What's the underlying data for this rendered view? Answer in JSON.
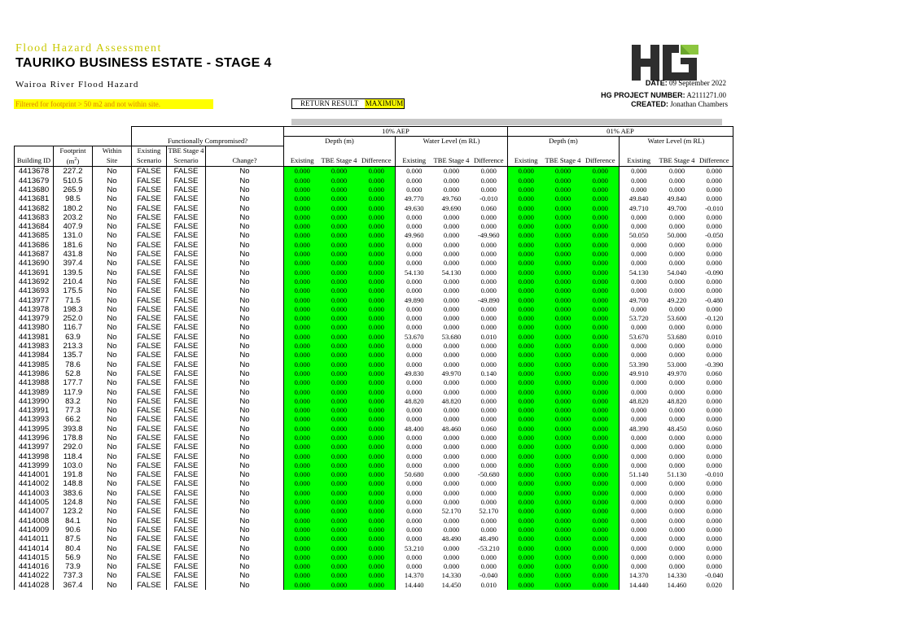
{
  "header": {
    "label": "Flood Hazard Assessment",
    "title": "TAURIKO BUSINESS ESTATE - STAGE 4",
    "subtitle": "Wairoa River Flood Hazard",
    "filter_note": "Filtered for footprint > 50 m2 and not within site.",
    "return_result_label": "RETURN RESULT",
    "return_result_value": "MAXIMUM",
    "logo_text": "HG",
    "date_label": "DATE:",
    "date_value": "09 September 2022",
    "project_label": "HG PROJECT NUMBER:",
    "project_value": "A2111271.00",
    "created_label": "CREATED:",
    "created_value": "Jonathan Chambers"
  },
  "colors": {
    "accent_yellow": "#c8c800",
    "highlight": "#ffff00",
    "depth_cell": "#00ff00",
    "logo_dark": "#2e2e2e",
    "logo_green": "#8cc63f"
  },
  "table": {
    "group_headers": {
      "func": "Functionally Compromised?",
      "aep10": "10% AEP",
      "aep01": "01% AEP"
    },
    "sub_headers": {
      "depth": "Depth (m)",
      "wl": "Water Level (m RL)"
    },
    "col_top": {
      "footprint": "Footprint",
      "within": "Within",
      "existing": "Existing",
      "tbe": "TBE Stage 4"
    },
    "col_bottom": {
      "building": "Building ID",
      "area": "(m",
      "area_sup": "2",
      "area_end": ")",
      "site": "Site",
      "existing": "Scenario",
      "tbe": "Scenario",
      "change": "Change?",
      "d_existing": "Existing",
      "d_tbe": "TBE Stage 4",
      "d_diff": "Difference",
      "w_existing": "Existing",
      "w_tbe": "TBE Stage 4",
      "w_diff": "Difference"
    },
    "rows": [
      [
        "4413678",
        "227.2",
        "No",
        "FALSE",
        "FALSE",
        "No",
        "0.000",
        "0.000",
        "0.000",
        "0.000",
        "0.000",
        "0.000",
        "0.000",
        "0.000",
        "0.000",
        "0.000",
        "0.000",
        "0.000"
      ],
      [
        "4413679",
        "510.5",
        "No",
        "FALSE",
        "FALSE",
        "No",
        "0.000",
        "0.000",
        "0.000",
        "0.000",
        "0.000",
        "0.000",
        "0.000",
        "0.000",
        "0.000",
        "0.000",
        "0.000",
        "0.000"
      ],
      [
        "4413680",
        "265.9",
        "No",
        "FALSE",
        "FALSE",
        "No",
        "0.000",
        "0.000",
        "0.000",
        "0.000",
        "0.000",
        "0.000",
        "0.000",
        "0.000",
        "0.000",
        "0.000",
        "0.000",
        "0.000"
      ],
      [
        "4413681",
        "98.5",
        "No",
        "FALSE",
        "FALSE",
        "No",
        "0.000",
        "0.000",
        "0.000",
        "49.770",
        "49.760",
        "-0.010",
        "0.000",
        "0.000",
        "0.000",
        "49.840",
        "49.840",
        "0.000"
      ],
      [
        "4413682",
        "180.2",
        "No",
        "FALSE",
        "FALSE",
        "No",
        "0.000",
        "0.000",
        "0.000",
        "49.630",
        "49.690",
        "0.060",
        "0.000",
        "0.000",
        "0.000",
        "49.710",
        "49.700",
        "-0.010"
      ],
      [
        "4413683",
        "203.2",
        "No",
        "FALSE",
        "FALSE",
        "No",
        "0.000",
        "0.000",
        "0.000",
        "0.000",
        "0.000",
        "0.000",
        "0.000",
        "0.000",
        "0.000",
        "0.000",
        "0.000",
        "0.000"
      ],
      [
        "4413684",
        "407.9",
        "No",
        "FALSE",
        "FALSE",
        "No",
        "0.000",
        "0.000",
        "0.000",
        "0.000",
        "0.000",
        "0.000",
        "0.000",
        "0.000",
        "0.000",
        "0.000",
        "0.000",
        "0.000"
      ],
      [
        "4413685",
        "131.0",
        "No",
        "FALSE",
        "FALSE",
        "No",
        "0.000",
        "0.000",
        "0.000",
        "49.960",
        "0.000",
        "-49.960",
        "0.000",
        "0.000",
        "0.000",
        "50.050",
        "50.000",
        "-0.050"
      ],
      [
        "4413686",
        "181.6",
        "No",
        "FALSE",
        "FALSE",
        "No",
        "0.000",
        "0.000",
        "0.000",
        "0.000",
        "0.000",
        "0.000",
        "0.000",
        "0.000",
        "0.000",
        "0.000",
        "0.000",
        "0.000"
      ],
      [
        "4413687",
        "431.8",
        "No",
        "FALSE",
        "FALSE",
        "No",
        "0.000",
        "0.000",
        "0.000",
        "0.000",
        "0.000",
        "0.000",
        "0.000",
        "0.000",
        "0.000",
        "0.000",
        "0.000",
        "0.000"
      ],
      [
        "4413690",
        "397.4",
        "No",
        "FALSE",
        "FALSE",
        "No",
        "0.000",
        "0.000",
        "0.000",
        "0.000",
        "0.000",
        "0.000",
        "0.000",
        "0.000",
        "0.000",
        "0.000",
        "0.000",
        "0.000"
      ],
      [
        "4413691",
        "139.5",
        "No",
        "FALSE",
        "FALSE",
        "No",
        "0.000",
        "0.000",
        "0.000",
        "54.130",
        "54.130",
        "0.000",
        "0.000",
        "0.000",
        "0.000",
        "54.130",
        "54.040",
        "-0.090"
      ],
      [
        "4413692",
        "210.4",
        "No",
        "FALSE",
        "FALSE",
        "No",
        "0.000",
        "0.000",
        "0.000",
        "0.000",
        "0.000",
        "0.000",
        "0.000",
        "0.000",
        "0.000",
        "0.000",
        "0.000",
        "0.000"
      ],
      [
        "4413693",
        "175.5",
        "No",
        "FALSE",
        "FALSE",
        "No",
        "0.000",
        "0.000",
        "0.000",
        "0.000",
        "0.000",
        "0.000",
        "0.000",
        "0.000",
        "0.000",
        "0.000",
        "0.000",
        "0.000"
      ],
      [
        "4413977",
        "71.5",
        "No",
        "FALSE",
        "FALSE",
        "No",
        "0.000",
        "0.000",
        "0.000",
        "49.890",
        "0.000",
        "-49.890",
        "0.000",
        "0.000",
        "0.000",
        "49.700",
        "49.220",
        "-0.480"
      ],
      [
        "4413978",
        "198.3",
        "No",
        "FALSE",
        "FALSE",
        "No",
        "0.000",
        "0.000",
        "0.000",
        "0.000",
        "0.000",
        "0.000",
        "0.000",
        "0.000",
        "0.000",
        "0.000",
        "0.000",
        "0.000"
      ],
      [
        "4413979",
        "252.0",
        "No",
        "FALSE",
        "FALSE",
        "No",
        "0.000",
        "0.000",
        "0.000",
        "0.000",
        "0.000",
        "0.000",
        "0.000",
        "0.000",
        "0.000",
        "53.720",
        "53.600",
        "-0.120"
      ],
      [
        "4413980",
        "116.7",
        "No",
        "FALSE",
        "FALSE",
        "No",
        "0.000",
        "0.000",
        "0.000",
        "0.000",
        "0.000",
        "0.000",
        "0.000",
        "0.000",
        "0.000",
        "0.000",
        "0.000",
        "0.000"
      ],
      [
        "4413981",
        "63.9",
        "No",
        "FALSE",
        "FALSE",
        "No",
        "0.000",
        "0.000",
        "0.000",
        "53.670",
        "53.680",
        "0.010",
        "0.000",
        "0.000",
        "0.000",
        "53.670",
        "53.680",
        "0.010"
      ],
      [
        "4413983",
        "213.3",
        "No",
        "FALSE",
        "FALSE",
        "No",
        "0.000",
        "0.000",
        "0.000",
        "0.000",
        "0.000",
        "0.000",
        "0.000",
        "0.000",
        "0.000",
        "0.000",
        "0.000",
        "0.000"
      ],
      [
        "4413984",
        "135.7",
        "No",
        "FALSE",
        "FALSE",
        "No",
        "0.000",
        "0.000",
        "0.000",
        "0.000",
        "0.000",
        "0.000",
        "0.000",
        "0.000",
        "0.000",
        "0.000",
        "0.000",
        "0.000"
      ],
      [
        "4413985",
        "78.6",
        "No",
        "FALSE",
        "FALSE",
        "No",
        "0.000",
        "0.000",
        "0.000",
        "0.000",
        "0.000",
        "0.000",
        "0.000",
        "0.000",
        "0.000",
        "53.390",
        "53.000",
        "-0.390"
      ],
      [
        "4413986",
        "52.8",
        "No",
        "FALSE",
        "FALSE",
        "No",
        "0.000",
        "0.000",
        "0.000",
        "49.830",
        "49.970",
        "0.140",
        "0.000",
        "0.000",
        "0.000",
        "49.910",
        "49.970",
        "0.060"
      ],
      [
        "4413988",
        "177.7",
        "No",
        "FALSE",
        "FALSE",
        "No",
        "0.000",
        "0.000",
        "0.000",
        "0.000",
        "0.000",
        "0.000",
        "0.000",
        "0.000",
        "0.000",
        "0.000",
        "0.000",
        "0.000"
      ],
      [
        "4413989",
        "117.9",
        "No",
        "FALSE",
        "FALSE",
        "No",
        "0.000",
        "0.000",
        "0.000",
        "0.000",
        "0.000",
        "0.000",
        "0.000",
        "0.000",
        "0.000",
        "0.000",
        "0.000",
        "0.000"
      ],
      [
        "4413990",
        "83.2",
        "No",
        "FALSE",
        "FALSE",
        "No",
        "0.000",
        "0.000",
        "0.000",
        "48.820",
        "48.820",
        "0.000",
        "0.000",
        "0.000",
        "0.000",
        "48.820",
        "48.820",
        "0.000"
      ],
      [
        "4413991",
        "77.3",
        "No",
        "FALSE",
        "FALSE",
        "No",
        "0.000",
        "0.000",
        "0.000",
        "0.000",
        "0.000",
        "0.000",
        "0.000",
        "0.000",
        "0.000",
        "0.000",
        "0.000",
        "0.000"
      ],
      [
        "4413993",
        "66.2",
        "No",
        "FALSE",
        "FALSE",
        "No",
        "0.000",
        "0.000",
        "0.000",
        "0.000",
        "0.000",
        "0.000",
        "0.000",
        "0.000",
        "0.000",
        "0.000",
        "0.000",
        "0.000"
      ],
      [
        "4413995",
        "393.8",
        "No",
        "FALSE",
        "FALSE",
        "No",
        "0.000",
        "0.000",
        "0.000",
        "48.400",
        "48.460",
        "0.060",
        "0.000",
        "0.000",
        "0.000",
        "48.390",
        "48.450",
        "0.060"
      ],
      [
        "4413996",
        "178.8",
        "No",
        "FALSE",
        "FALSE",
        "No",
        "0.000",
        "0.000",
        "0.000",
        "0.000",
        "0.000",
        "0.000",
        "0.000",
        "0.000",
        "0.000",
        "0.000",
        "0.000",
        "0.000"
      ],
      [
        "4413997",
        "292.0",
        "No",
        "FALSE",
        "FALSE",
        "No",
        "0.000",
        "0.000",
        "0.000",
        "0.000",
        "0.000",
        "0.000",
        "0.000",
        "0.000",
        "0.000",
        "0.000",
        "0.000",
        "0.000"
      ],
      [
        "4413998",
        "118.4",
        "No",
        "FALSE",
        "FALSE",
        "No",
        "0.000",
        "0.000",
        "0.000",
        "0.000",
        "0.000",
        "0.000",
        "0.000",
        "0.000",
        "0.000",
        "0.000",
        "0.000",
        "0.000"
      ],
      [
        "4413999",
        "103.0",
        "No",
        "FALSE",
        "FALSE",
        "No",
        "0.000",
        "0.000",
        "0.000",
        "0.000",
        "0.000",
        "0.000",
        "0.000",
        "0.000",
        "0.000",
        "0.000",
        "0.000",
        "0.000"
      ],
      [
        "4414001",
        "191.8",
        "No",
        "FALSE",
        "FALSE",
        "No",
        "0.000",
        "0.000",
        "0.000",
        "50.680",
        "0.000",
        "-50.680",
        "0.000",
        "0.000",
        "0.000",
        "51.140",
        "51.130",
        "-0.010"
      ],
      [
        "4414002",
        "148.8",
        "No",
        "FALSE",
        "FALSE",
        "No",
        "0.000",
        "0.000",
        "0.000",
        "0.000",
        "0.000",
        "0.000",
        "0.000",
        "0.000",
        "0.000",
        "0.000",
        "0.000",
        "0.000"
      ],
      [
        "4414003",
        "383.6",
        "No",
        "FALSE",
        "FALSE",
        "No",
        "0.000",
        "0.000",
        "0.000",
        "0.000",
        "0.000",
        "0.000",
        "0.000",
        "0.000",
        "0.000",
        "0.000",
        "0.000",
        "0.000"
      ],
      [
        "4414005",
        "124.8",
        "No",
        "FALSE",
        "FALSE",
        "No",
        "0.000",
        "0.000",
        "0.000",
        "0.000",
        "0.000",
        "0.000",
        "0.000",
        "0.000",
        "0.000",
        "0.000",
        "0.000",
        "0.000"
      ],
      [
        "4414007",
        "123.2",
        "No",
        "FALSE",
        "FALSE",
        "No",
        "0.000",
        "0.000",
        "0.000",
        "0.000",
        "52.170",
        "52.170",
        "0.000",
        "0.000",
        "0.000",
        "0.000",
        "0.000",
        "0.000"
      ],
      [
        "4414008",
        "84.1",
        "No",
        "FALSE",
        "FALSE",
        "No",
        "0.000",
        "0.000",
        "0.000",
        "0.000",
        "0.000",
        "0.000",
        "0.000",
        "0.000",
        "0.000",
        "0.000",
        "0.000",
        "0.000"
      ],
      [
        "4414009",
        "90.6",
        "No",
        "FALSE",
        "FALSE",
        "No",
        "0.000",
        "0.000",
        "0.000",
        "0.000",
        "0.000",
        "0.000",
        "0.000",
        "0.000",
        "0.000",
        "0.000",
        "0.000",
        "0.000"
      ],
      [
        "4414011",
        "87.5",
        "No",
        "FALSE",
        "FALSE",
        "No",
        "0.000",
        "0.000",
        "0.000",
        "0.000",
        "48.490",
        "48.490",
        "0.000",
        "0.000",
        "0.000",
        "0.000",
        "0.000",
        "0.000"
      ],
      [
        "4414014",
        "80.4",
        "No",
        "FALSE",
        "FALSE",
        "No",
        "0.000",
        "0.000",
        "0.000",
        "53.210",
        "0.000",
        "-53.210",
        "0.000",
        "0.000",
        "0.000",
        "0.000",
        "0.000",
        "0.000"
      ],
      [
        "4414015",
        "56.9",
        "No",
        "FALSE",
        "FALSE",
        "No",
        "0.000",
        "0.000",
        "0.000",
        "0.000",
        "0.000",
        "0.000",
        "0.000",
        "0.000",
        "0.000",
        "0.000",
        "0.000",
        "0.000"
      ],
      [
        "4414016",
        "73.9",
        "No",
        "FALSE",
        "FALSE",
        "No",
        "0.000",
        "0.000",
        "0.000",
        "0.000",
        "0.000",
        "0.000",
        "0.000",
        "0.000",
        "0.000",
        "0.000",
        "0.000",
        "0.000"
      ],
      [
        "4414022",
        "737.3",
        "No",
        "FALSE",
        "FALSE",
        "No",
        "0.000",
        "0.000",
        "0.000",
        "14.370",
        "14.330",
        "-0.040",
        "0.000",
        "0.000",
        "0.000",
        "14.370",
        "14.330",
        "-0.040"
      ],
      [
        "4414028",
        "367.4",
        "No",
        "FALSE",
        "FALSE",
        "No",
        "0.000",
        "0.000",
        "0.000",
        "14.440",
        "14.450",
        "0.010",
        "0.000",
        "0.000",
        "0.000",
        "14.440",
        "14.460",
        "0.020"
      ]
    ]
  }
}
